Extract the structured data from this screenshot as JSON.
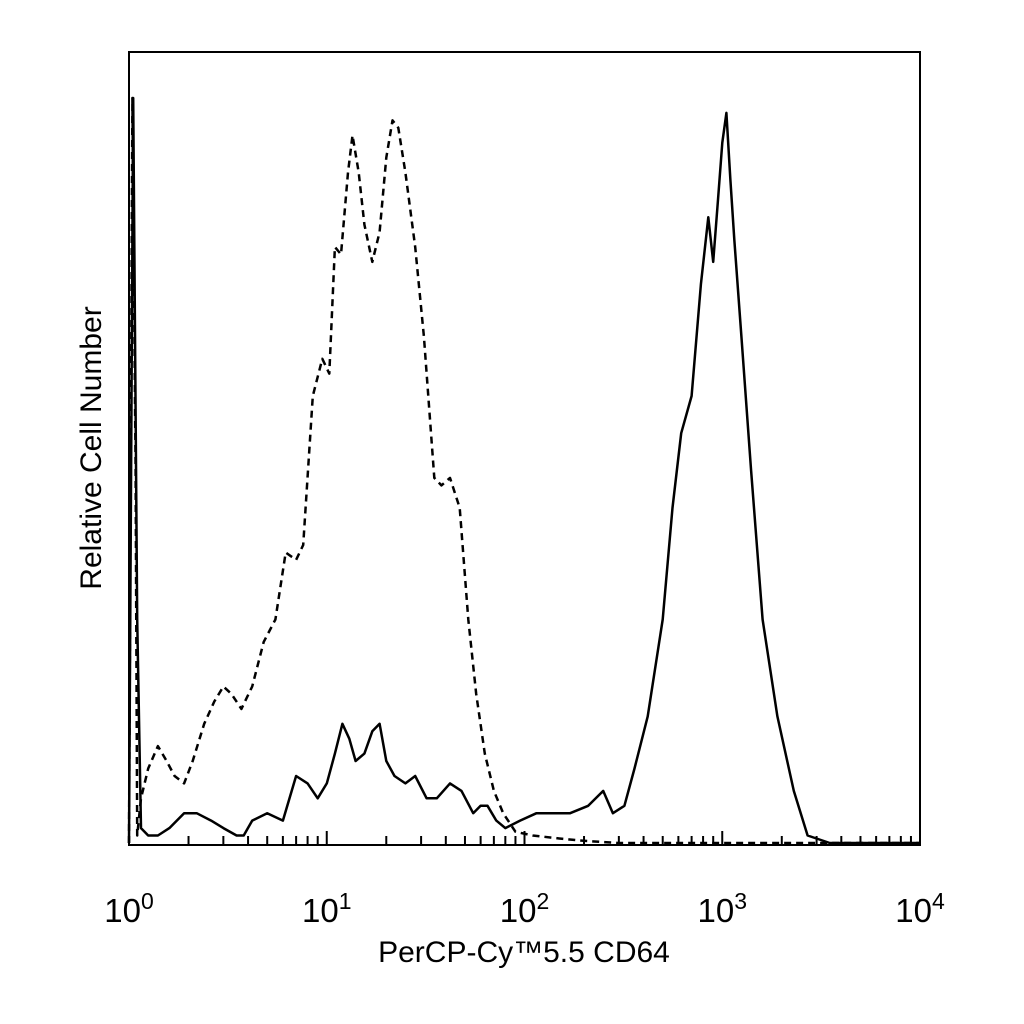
{
  "chart_data": {
    "type": "line",
    "xlabel": "PerCP-Cy™5.5 CD64",
    "ylabel": "Relative Cell Number",
    "x_scale": "log",
    "xlim": [
      1,
      10000
    ],
    "ylim": [
      0,
      100
    ],
    "grid": false,
    "x_ticks": [
      {
        "base": "10",
        "exp": "0"
      },
      {
        "base": "10",
        "exp": "1"
      },
      {
        "base": "10",
        "exp": "2"
      },
      {
        "base": "10",
        "exp": "3"
      },
      {
        "base": "10",
        "exp": "4"
      }
    ],
    "series": [
      {
        "style": "dashed",
        "x": [
          1.0,
          1.04,
          1.08,
          1.1,
          1.15,
          1.25,
          1.4,
          1.55,
          1.7,
          1.9,
          2.1,
          2.4,
          2.7,
          3.0,
          3.3,
          3.7,
          4.2,
          4.8,
          5.5,
          6.2,
          7.0,
          7.6,
          8.5,
          9.5,
          10.3,
          11.0,
          11.8,
          12.8,
          13.5,
          14.5,
          15.5,
          17.0,
          18.5,
          20.0,
          21.5,
          23.0,
          25.0,
          28.0,
          31.0,
          35.0,
          38.0,
          42.0,
          47.0,
          52.0,
          57.0,
          63.0,
          70.0,
          78.0,
          90.0,
          110.0,
          150.0,
          200.0,
          300.0,
          500.0,
          1000.0,
          3000.0,
          10000.0
        ],
        "y": [
          0,
          100,
          50,
          1,
          6,
          10,
          13,
          11,
          9,
          8,
          11,
          16,
          19,
          21,
          20,
          18,
          21,
          27,
          30,
          39,
          38,
          40,
          60,
          65,
          63,
          80,
          79,
          90,
          95,
          90,
          83,
          78,
          82,
          92,
          97,
          96,
          90,
          80,
          68,
          49,
          48,
          49,
          45,
          30,
          20,
          12,
          7,
          4,
          1.5,
          1,
          0.6,
          0.3,
          0,
          0,
          0,
          0,
          0
        ]
      },
      {
        "style": "solid",
        "x": [
          1.0,
          1.05,
          1.1,
          1.15,
          1.25,
          1.4,
          1.6,
          1.9,
          2.2,
          2.6,
          3.0,
          3.5,
          3.8,
          4.2,
          5.0,
          6.0,
          7.0,
          8.0,
          9.0,
          10.0,
          11.0,
          12.0,
          13.0,
          14.0,
          15.5,
          17.0,
          18.5,
          20.0,
          22.0,
          25.0,
          28.0,
          32.0,
          36.0,
          42.0,
          48.0,
          55.0,
          60.0,
          65.0,
          72.0,
          80.0,
          95.0,
          115.0,
          140.0,
          170.0,
          210.0,
          250.0,
          280.0,
          320.0,
          360.0,
          420.0,
          500.0,
          560.0,
          620.0,
          700.0,
          780.0,
          850.0,
          900.0,
          950.0,
          1000.0,
          1050.0,
          1100.0,
          1150.0,
          1250.0,
          1400.0,
          1600.0,
          1900.0,
          2300.0,
          2700.0,
          3500.0,
          5000.0,
          10000.0
        ],
        "y": [
          0,
          100,
          30,
          2,
          1,
          1,
          2,
          4,
          4,
          3,
          2,
          1,
          1,
          3,
          4,
          3,
          9,
          8,
          6,
          8,
          12,
          16,
          14,
          11,
          12,
          15,
          16,
          11,
          9,
          8,
          9,
          6,
          6,
          8,
          7,
          4,
          5,
          5,
          3,
          2,
          3,
          4,
          4,
          4,
          5,
          7,
          4,
          5,
          10,
          17,
          30,
          45,
          55,
          60,
          75,
          84,
          78,
          86,
          94,
          98,
          89,
          81,
          68,
          50,
          30,
          17,
          7,
          1,
          0,
          0,
          0
        ]
      }
    ]
  }
}
